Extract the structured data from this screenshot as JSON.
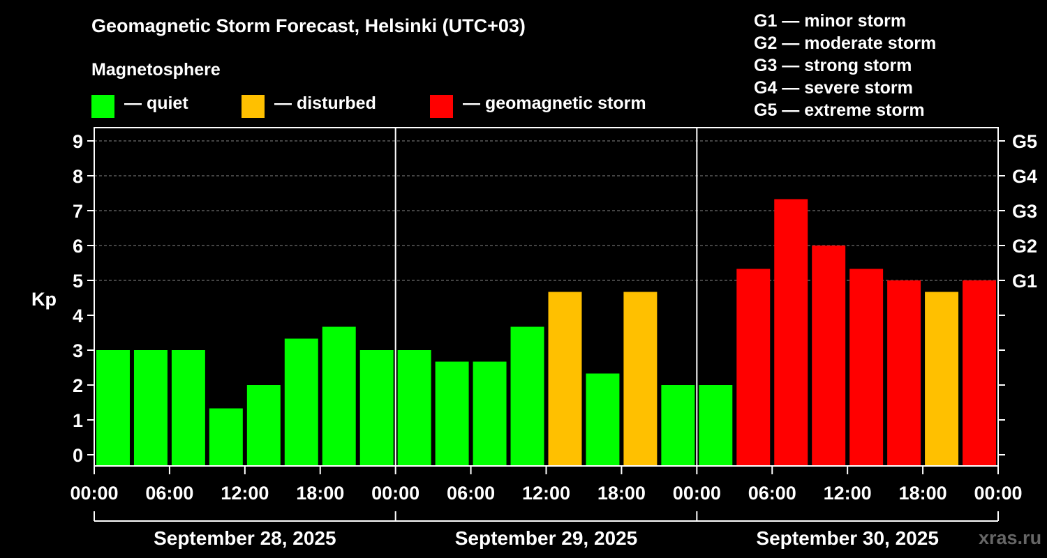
{
  "title": "Geomagnetic Storm Forecast, Helsinki (UTC+03)",
  "subtitle": "Magnetosphere",
  "legend": [
    {
      "label": "— quiet",
      "color": "#00ff00"
    },
    {
      "label": "— disturbed",
      "color": "#ffc000"
    },
    {
      "label": "— geomagnetic storm",
      "color": "#ff0000"
    }
  ],
  "g_scale": [
    "G1 — minor storm",
    "G2 — moderate storm",
    "G3 — strong storm",
    "G4 — severe storm",
    "G5 — extreme storm"
  ],
  "watermark": "xras.ru",
  "chart_data": {
    "type": "bar",
    "ylabel": "Kp",
    "ylim": [
      0,
      9
    ],
    "yticks": [
      "0",
      "1",
      "2",
      "3",
      "4",
      "5",
      "6",
      "7",
      "8",
      "9"
    ],
    "g_ticks": [
      {
        "label": "G1",
        "kp": 5
      },
      {
        "label": "G2",
        "kp": 6
      },
      {
        "label": "G3",
        "kp": 7
      },
      {
        "label": "G4",
        "kp": 8
      },
      {
        "label": "G5",
        "kp": 9
      }
    ],
    "gridlines_at": [
      5,
      6,
      7,
      8,
      9
    ],
    "xticks": [
      "00:00",
      "06:00",
      "12:00",
      "18:00",
      "00:00",
      "06:00",
      "12:00",
      "18:00",
      "00:00",
      "06:00",
      "12:00",
      "18:00",
      "00:00"
    ],
    "days": [
      "September 28, 2025",
      "September 29, 2025",
      "September 30, 2025"
    ],
    "categories": [
      "Sep 28 00:00",
      "Sep 28 03:00",
      "Sep 28 06:00",
      "Sep 28 09:00",
      "Sep 28 12:00",
      "Sep 28 15:00",
      "Sep 28 18:00",
      "Sep 28 21:00",
      "Sep 29 00:00",
      "Sep 29 03:00",
      "Sep 29 06:00",
      "Sep 29 09:00",
      "Sep 29 12:00",
      "Sep 29 15:00",
      "Sep 29 18:00",
      "Sep 29 21:00",
      "Sep 30 00:00",
      "Sep 30 03:00",
      "Sep 30 06:00",
      "Sep 30 09:00",
      "Sep 30 12:00",
      "Sep 30 15:00",
      "Sep 30 18:00",
      "Sep 30 21:00"
    ],
    "values": [
      3.0,
      3.0,
      3.0,
      1.33,
      2.0,
      3.33,
      3.67,
      3.0,
      3.0,
      2.67,
      2.67,
      3.67,
      4.67,
      2.33,
      4.67,
      2.0,
      2.0,
      5.33,
      7.33,
      6.0,
      5.33,
      5.0,
      4.67,
      5.0
    ],
    "levels": [
      "quiet",
      "quiet",
      "quiet",
      "quiet",
      "quiet",
      "quiet",
      "quiet",
      "quiet",
      "quiet",
      "quiet",
      "quiet",
      "quiet",
      "disturbed",
      "quiet",
      "disturbed",
      "quiet",
      "quiet",
      "storm",
      "storm",
      "storm",
      "storm",
      "storm",
      "disturbed",
      "storm"
    ],
    "level_colors": {
      "quiet": "#00ff00",
      "disturbed": "#ffc000",
      "storm": "#ff0000"
    }
  }
}
